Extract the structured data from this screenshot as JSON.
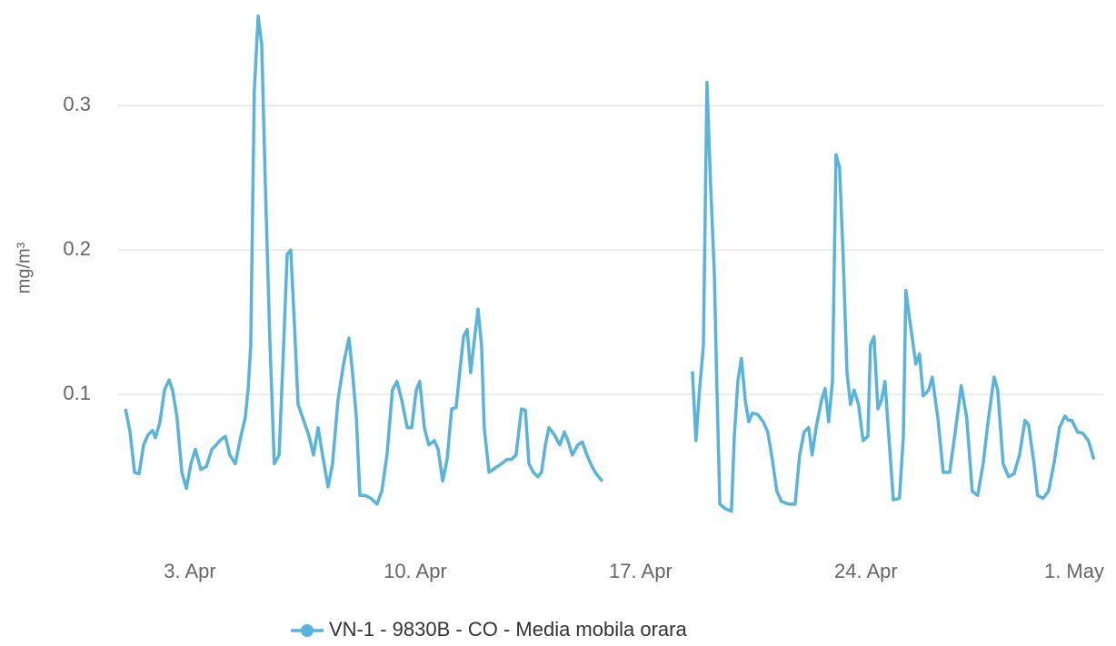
{
  "chart_data": {
    "type": "line",
    "y_label": "mg/m³",
    "x": [
      1.0,
      1.14,
      1.28,
      1.42,
      1.56,
      1.7,
      1.84,
      1.93,
      2.07,
      2.21,
      2.35,
      2.46,
      2.6,
      2.75,
      2.89,
      3.03,
      3.17,
      3.34,
      3.51,
      3.68,
      3.82,
      3.93,
      4.1,
      4.24,
      4.41,
      4.58,
      4.72,
      4.81,
      4.89,
      5.0,
      5.12,
      5.23,
      5.34,
      5.48,
      5.62,
      5.77,
      5.91,
      6.02,
      6.13,
      6.25,
      6.36,
      6.5,
      6.7,
      6.84,
      6.98,
      7.12,
      7.29,
      7.43,
      7.6,
      7.77,
      7.94,
      8.05,
      8.17,
      8.28,
      8.45,
      8.62,
      8.81,
      8.96,
      9.12,
      9.29,
      9.43,
      9.58,
      9.75,
      9.89,
      10.03,
      10.14,
      10.28,
      10.42,
      10.59,
      10.71,
      10.85,
      10.99,
      11.13,
      11.27,
      11.38,
      11.5,
      11.61,
      11.72,
      11.83,
      11.95,
      12.06,
      12.14,
      12.29,
      12.48,
      12.68,
      12.85,
      12.99,
      13.13,
      13.3,
      13.42,
      13.53,
      13.67,
      13.81,
      13.92,
      14.04,
      14.15,
      14.32,
      14.49,
      14.63,
      14.74,
      14.88,
      15.05,
      15.19,
      15.33,
      15.45,
      15.59,
      15.73,
      15.81,
      17.3,
      18.61,
      18.72,
      18.83,
      18.95,
      19.06,
      19.17,
      19.29,
      19.37,
      19.46,
      19.62,
      19.82,
      19.91,
      20.02,
      20.13,
      20.25,
      20.36,
      20.47,
      20.64,
      20.81,
      20.95,
      21.09,
      21.23,
      21.37,
      21.6,
      21.8,
      21.94,
      22.08,
      22.22,
      22.33,
      22.45,
      22.62,
      22.73,
      22.84,
      22.96,
      23.07,
      23.18,
      23.29,
      23.41,
      23.52,
      23.63,
      23.77,
      23.91,
      24.06,
      24.14,
      24.25,
      24.37,
      24.48,
      24.59,
      24.71,
      24.85,
      25.04,
      25.16,
      25.24,
      25.35,
      25.47,
      25.55,
      25.66,
      25.78,
      25.95,
      26.06,
      26.23,
      26.4,
      26.6,
      26.79,
      26.96,
      27.13,
      27.3,
      27.47,
      27.64,
      27.81,
      27.98,
      28.09,
      28.26,
      28.43,
      28.6,
      28.77,
      28.94,
      29.05,
      29.22,
      29.33,
      29.5,
      29.67,
      29.84,
      30.01,
      30.18,
      30.29,
      30.4,
      30.57,
      30.74,
      30.91,
      31.08
    ],
    "series": [
      {
        "name": "VN-1 - 9830B - CO - Media mobila orara",
        "color": "#58b4da",
        "values": [
          0.09,
          0.074,
          0.046,
          0.045,
          0.065,
          0.072,
          0.075,
          0.07,
          0.081,
          0.103,
          0.11,
          0.103,
          0.084,
          0.046,
          0.035,
          0.052,
          0.062,
          0.048,
          0.05,
          0.062,
          0.065,
          0.068,
          0.071,
          0.058,
          0.052,
          0.071,
          0.084,
          0.104,
          0.134,
          0.31,
          0.362,
          0.342,
          0.247,
          0.14,
          0.052,
          0.058,
          0.134,
          0.197,
          0.2,
          0.147,
          0.093,
          0.084,
          0.071,
          0.058,
          0.077,
          0.058,
          0.036,
          0.052,
          0.096,
          0.121,
          0.139,
          0.115,
          0.084,
          0.03,
          0.03,
          0.028,
          0.024,
          0.033,
          0.058,
          0.103,
          0.109,
          0.096,
          0.077,
          0.077,
          0.103,
          0.109,
          0.077,
          0.065,
          0.068,
          0.062,
          0.04,
          0.055,
          0.09,
          0.091,
          0.115,
          0.14,
          0.145,
          0.115,
          0.137,
          0.159,
          0.134,
          0.077,
          0.046,
          0.049,
          0.052,
          0.055,
          0.055,
          0.058,
          0.09,
          0.089,
          0.052,
          0.046,
          0.043,
          0.046,
          0.065,
          0.077,
          0.072,
          0.065,
          0.074,
          0.068,
          0.058,
          0.065,
          0.067,
          0.058,
          0.052,
          0.046,
          0.042,
          0.04,
          null,
          0.116,
          0.068,
          0.103,
          0.134,
          0.316,
          0.247,
          0.184,
          0.103,
          0.024,
          0.021,
          0.019,
          0.071,
          0.109,
          0.125,
          0.096,
          0.081,
          0.087,
          0.086,
          0.081,
          0.074,
          0.055,
          0.033,
          0.026,
          0.024,
          0.024,
          0.058,
          0.074,
          0.077,
          0.058,
          0.077,
          0.096,
          0.104,
          0.081,
          0.109,
          0.266,
          0.257,
          0.197,
          0.115,
          0.093,
          0.103,
          0.093,
          0.068,
          0.071,
          0.134,
          0.14,
          0.09,
          0.096,
          0.109,
          0.071,
          0.027,
          0.028,
          0.071,
          0.172,
          0.153,
          0.134,
          0.121,
          0.128,
          0.099,
          0.103,
          0.112,
          0.084,
          0.046,
          0.046,
          0.077,
          0.106,
          0.084,
          0.033,
          0.03,
          0.052,
          0.084,
          0.112,
          0.103,
          0.052,
          0.043,
          0.045,
          0.058,
          0.082,
          0.079,
          0.052,
          0.03,
          0.028,
          0.033,
          0.052,
          0.077,
          0.085,
          0.082,
          0.082,
          0.074,
          0.073,
          0.068,
          0.055
        ]
      }
    ],
    "xlim": [
      0.77,
      31.4
    ],
    "xticks": [
      {
        "value": 3,
        "label": "3. Apr"
      },
      {
        "value": 10,
        "label": "10. Apr"
      },
      {
        "value": 17,
        "label": "17. Apr"
      },
      {
        "value": 24,
        "label": "24. Apr"
      },
      {
        "value": 31,
        "label": "1. May"
      }
    ],
    "ylim": [
      0,
      0.37
    ],
    "yticks": [
      0.1,
      0.2,
      0.3
    ],
    "grid": true,
    "legend": "bottom"
  }
}
